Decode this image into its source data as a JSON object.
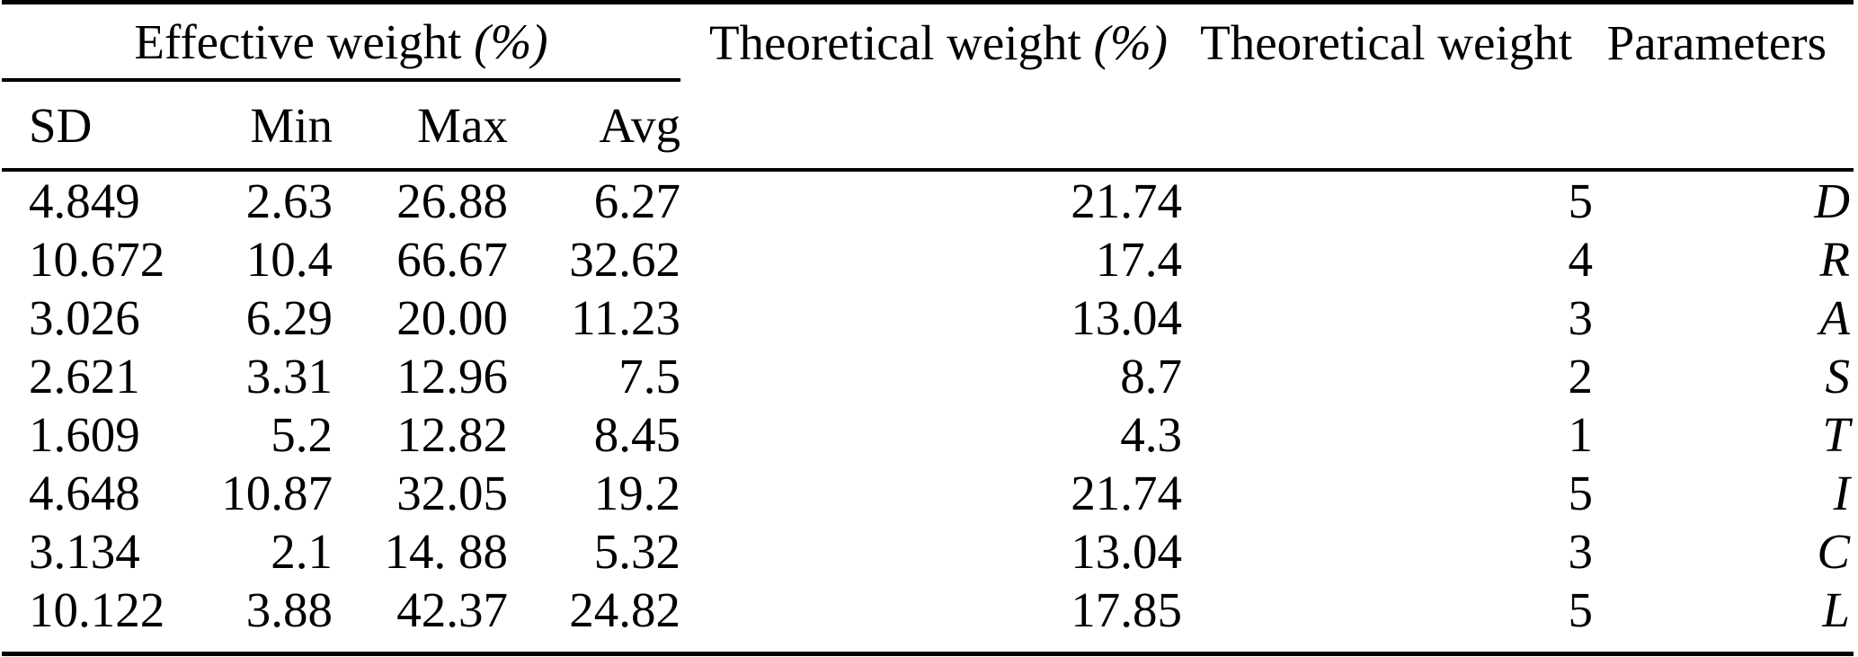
{
  "colors": {
    "background": "#ffffff",
    "text": "#000000",
    "rule": "#000000"
  },
  "table": {
    "header": {
      "effective_weight": "Effective weight",
      "effective_weight_unit": "(%)",
      "theoretical_weight_pct": "Theoretical weight",
      "theoretical_weight_pct_unit": "(%)",
      "theoretical_weight": "Theoretical weight",
      "parameters": "Parameters"
    },
    "subheader": {
      "sd": "SD",
      "min": "Min",
      "max": "Max",
      "avg": "Avg"
    },
    "rows": [
      {
        "sd": "4.849",
        "min": "2.63",
        "max": "26.88",
        "avg": "6.27",
        "theoretical_pct": "21.74",
        "theoretical": "5",
        "parameter": "D"
      },
      {
        "sd": "10.672",
        "min": "10.4",
        "max": "66.67",
        "avg": "32.62",
        "theoretical_pct": "17.4",
        "theoretical": "4",
        "parameter": "R"
      },
      {
        "sd": "3.026",
        "min": "6.29",
        "max": "20.00",
        "avg": "11.23",
        "theoretical_pct": "13.04",
        "theoretical": "3",
        "parameter": "A"
      },
      {
        "sd": "2.621",
        "min": "3.31",
        "max": "12.96",
        "avg": "7.5",
        "theoretical_pct": "8.7",
        "theoretical": "2",
        "parameter": "S"
      },
      {
        "sd": "1.609",
        "min": "5.2",
        "max": "12.82",
        "avg": "8.45",
        "theoretical_pct": "4.3",
        "theoretical": "1",
        "parameter": "T"
      },
      {
        "sd": "4.648",
        "min": "10.87",
        "max": "32.05",
        "avg": "19.2",
        "theoretical_pct": "21.74",
        "theoretical": "5",
        "parameter": "I"
      },
      {
        "sd": "3.134",
        "min": "2.1",
        "max": "14. 88",
        "avg": "5.32",
        "theoretical_pct": "13.04",
        "theoretical": "3",
        "parameter": "C"
      },
      {
        "sd": "10.122",
        "min": "3.88",
        "max": "42.37",
        "avg": "24.82",
        "theoretical_pct": "17.85",
        "theoretical": "5",
        "parameter": "L"
      }
    ]
  }
}
